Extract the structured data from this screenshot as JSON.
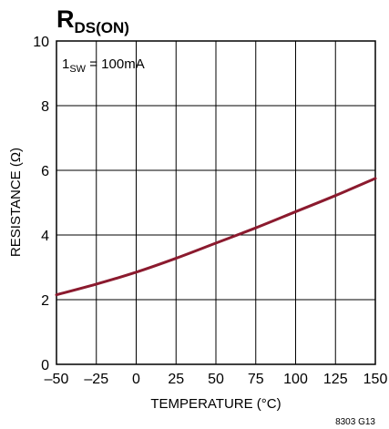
{
  "chart_data": {
    "type": "line",
    "title_main": "R",
    "title_sub": "DS(ON)",
    "xlabel": "TEMPERATURE (°C)",
    "ylabel": "RESISTANCE (Ω)",
    "xlim": [
      -50,
      150
    ],
    "ylim": [
      0,
      10
    ],
    "x_ticks": [
      -50,
      -25,
      0,
      25,
      50,
      75,
      100,
      125,
      150
    ],
    "x_tick_labels": [
      "–50",
      "–25",
      "0",
      "25",
      "50",
      "75",
      "100",
      "125",
      "150"
    ],
    "y_ticks": [
      0,
      2,
      4,
      6,
      8,
      10
    ],
    "y_tick_labels": [
      "0",
      "2",
      "4",
      "6",
      "8",
      "10"
    ],
    "grid": true,
    "series": [
      {
        "color": "#8b1a2e",
        "x": [
          -50,
          -25,
          0,
          25,
          50,
          75,
          100,
          125,
          150
        ],
        "y": [
          2.15,
          2.48,
          2.85,
          3.28,
          3.75,
          4.22,
          4.72,
          5.22,
          5.75
        ]
      }
    ],
    "annotation": {
      "text_prefix": "1",
      "text_sub": "SW",
      "text_suffix": " = 100mA"
    },
    "figure_code": "8303 G13"
  }
}
